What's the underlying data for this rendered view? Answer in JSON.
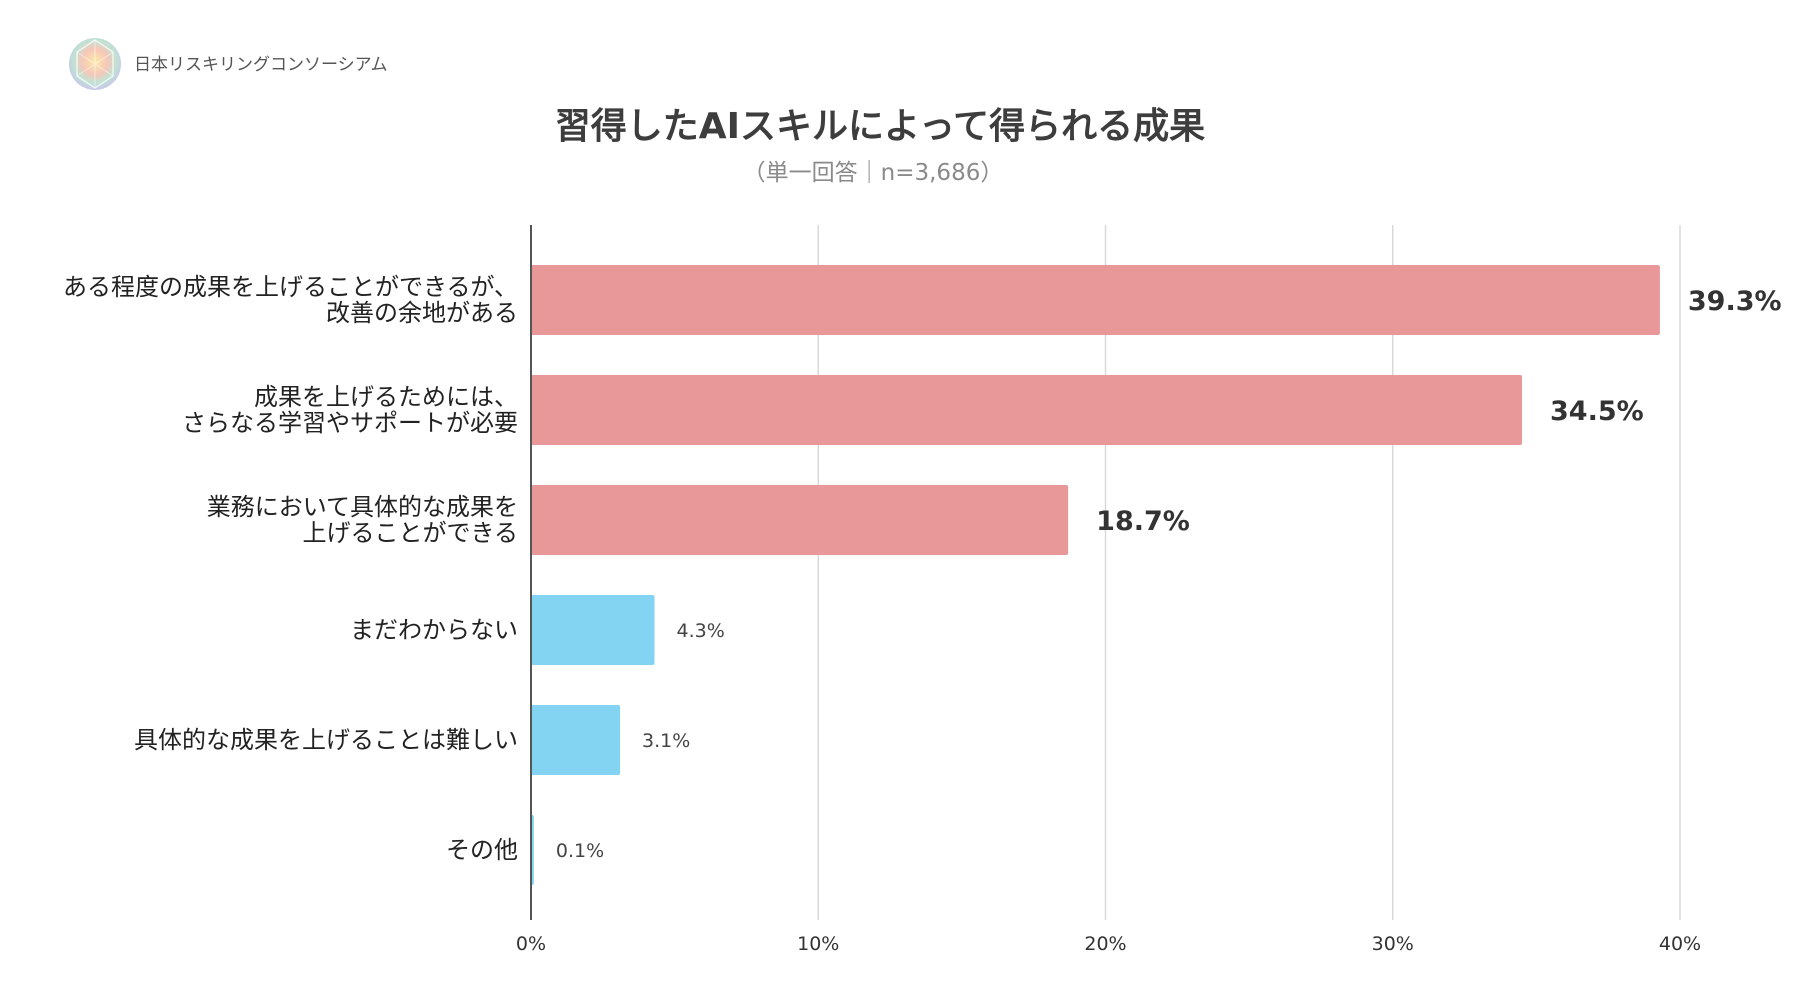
{
  "brand": {
    "name": "日本リスキリングコンソーシアム"
  },
  "chart_data": {
    "type": "bar",
    "orientation": "horizontal",
    "title": "習得したAIスキルによって得られる成果",
    "subtitle": "（単一回答｜n=3,686）",
    "xlabel": "",
    "ylabel": "",
    "xlim": [
      0,
      40
    ],
    "grid": true,
    "x_ticks": [
      0,
      10,
      20,
      30,
      40
    ],
    "x_tick_labels": [
      "0%",
      "10%",
      "20%",
      "30%",
      "40%"
    ],
    "categories": [
      [
        "ある程度の成果を上げることができるが、",
        "改善の余地がある"
      ],
      [
        "成果を上げるためには、",
        "さらなる学習やサポートが必要"
      ],
      [
        "業務において具体的な成果を",
        "上げることができる"
      ],
      [
        "まだわからない"
      ],
      [
        "具体的な成果を上げることは難しい"
      ],
      [
        "その他"
      ]
    ],
    "values": [
      39.3,
      34.5,
      18.7,
      4.3,
      3.1,
      0.1
    ],
    "value_labels": [
      "39.3%",
      "34.5%",
      "18.7%",
      "4.3%",
      "3.1%",
      "0.1%"
    ],
    "bar_colors": [
      "#e89898",
      "#e89898",
      "#e89898",
      "#83d4f2",
      "#83d4f2",
      "#83d4f2"
    ]
  }
}
